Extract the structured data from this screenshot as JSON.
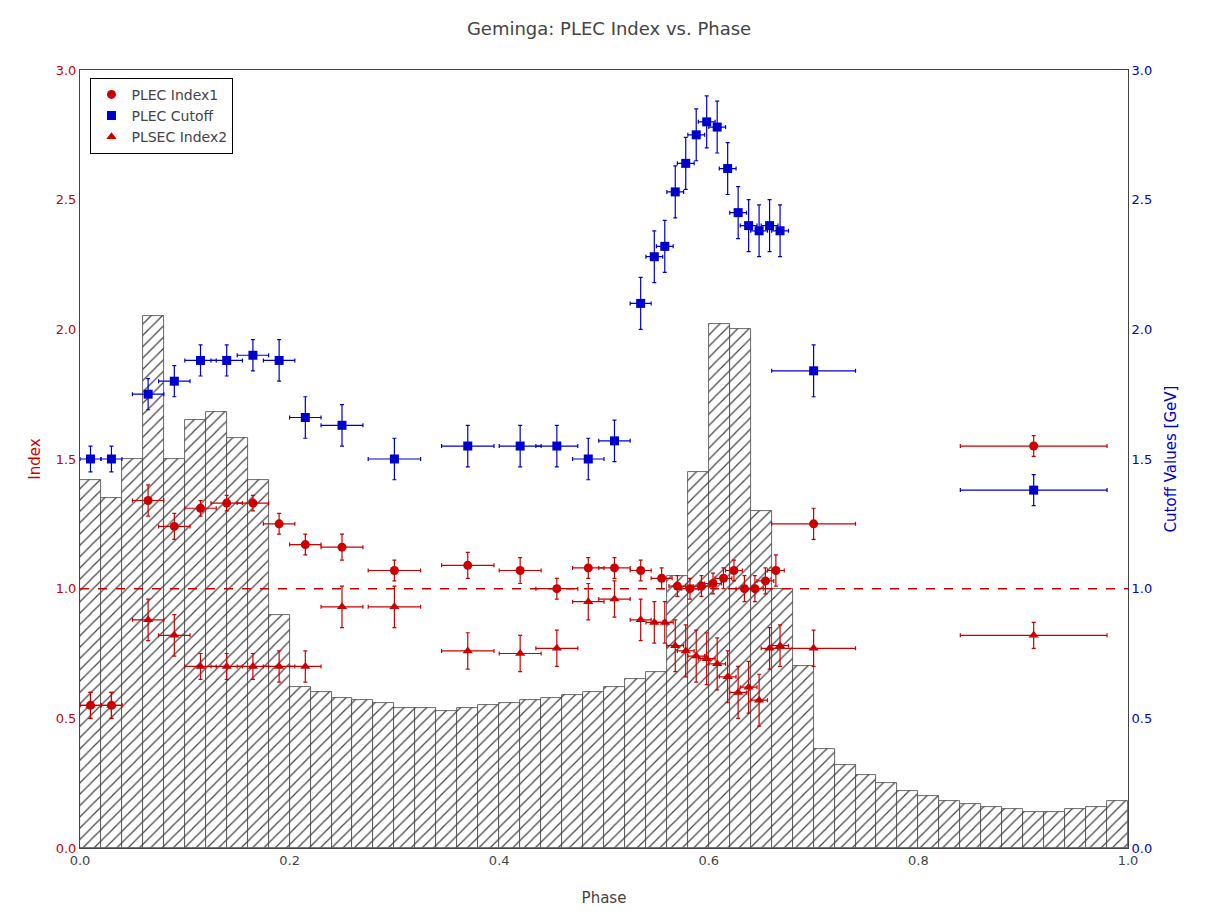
{
  "chart_data": {
    "type": "scatter",
    "title": "Geminga: PLEC Index vs. Phase",
    "xlabel": "Phase",
    "ylabel": "Index",
    "y2label": "Cutoff Values [GeV]",
    "xlim": [
      0.0,
      1.0
    ],
    "xticks": [
      {
        "value": 0.0,
        "label": "0.0"
      },
      0.2,
      0.4,
      0.6,
      0.8,
      {
        "value": 1.0,
        "label": "1.0"
      }
    ],
    "ylim": [
      0.0,
      3.0
    ],
    "yticks": [
      {
        "value": 0.0,
        "label": "0.0"
      },
      0.5,
      {
        "value": 1.0,
        "label": "1.0"
      },
      1.5,
      {
        "value": 2.0,
        "label": "2.0"
      },
      2.5,
      {
        "value": 3.0,
        "label": "3.0"
      }
    ],
    "y2lim": [
      0.0,
      3.0
    ],
    "y2ticks": [
      {
        "value": 0.0,
        "label": "0.0"
      },
      0.5,
      {
        "value": 1.0,
        "label": "1.0"
      },
      1.5,
      {
        "value": 2.0,
        "label": "2.0"
      },
      2.5,
      {
        "value": 3.0,
        "label": "3.0"
      }
    ],
    "grid": false,
    "legend": "upper left",
    "hlines": [
      {
        "y": 1.0,
        "color": "#cc0000",
        "line_style": "dashed"
      }
    ],
    "series": [
      {
        "type": "bar",
        "color": "#444444",
        "bins": [
          0.0,
          0.02,
          0.04,
          0.06,
          0.08,
          0.1,
          0.12,
          0.14,
          0.16,
          0.18,
          0.2,
          0.22,
          0.24,
          0.26,
          0.28,
          0.3,
          0.32,
          0.34,
          0.36,
          0.38,
          0.4,
          0.42,
          0.44,
          0.46,
          0.48,
          0.5,
          0.52,
          0.54,
          0.56,
          0.58,
          0.6,
          0.62,
          0.64,
          0.66,
          0.68,
          0.7,
          0.72,
          0.74,
          0.76,
          0.78,
          0.8,
          0.82,
          0.84,
          0.86,
          0.88,
          0.9,
          0.92,
          0.94,
          0.96,
          0.98,
          1.0
        ],
        "values": [
          1.42,
          1.35,
          1.5,
          2.05,
          1.5,
          1.65,
          1.68,
          1.58,
          1.42,
          0.9,
          0.62,
          0.6,
          0.58,
          0.57,
          0.56,
          0.54,
          0.54,
          0.53,
          0.54,
          0.55,
          0.56,
          0.57,
          0.58,
          0.59,
          0.6,
          0.62,
          0.65,
          0.68,
          1.05,
          1.45,
          2.02,
          2.0,
          1.3,
          1.0,
          0.7,
          0.38,
          0.32,
          0.28,
          0.25,
          0.22,
          0.2,
          0.18,
          0.17,
          0.16,
          0.15,
          0.14,
          0.14,
          0.15,
          0.16,
          0.18
        ]
      },
      {
        "name": "PLEC Index1",
        "type": "scatter",
        "marker": "circle",
        "color": "#cc0000",
        "axis": "y",
        "x": [
          0.01,
          0.03,
          0.065,
          0.09,
          0.115,
          0.14,
          0.165,
          0.19,
          0.215,
          0.25,
          0.3,
          0.37,
          0.42,
          0.455,
          0.485,
          0.51,
          0.535,
          0.555,
          0.57,
          0.582,
          0.593,
          0.604,
          0.614,
          0.624,
          0.634,
          0.644,
          0.654,
          0.664,
          0.7,
          0.91
        ],
        "values": [
          0.55,
          0.55,
          1.34,
          1.24,
          1.31,
          1.33,
          1.33,
          1.25,
          1.17,
          1.16,
          1.07,
          1.09,
          1.07,
          1.0,
          1.08,
          1.08,
          1.07,
          1.04,
          1.01,
          1.0,
          1.01,
          1.02,
          1.04,
          1.07,
          1.0,
          1.0,
          1.03,
          1.07,
          1.25,
          1.55
        ],
        "xerr": [
          0.01,
          0.01,
          0.015,
          0.015,
          0.015,
          0.015,
          0.015,
          0.015,
          0.015,
          0.02,
          0.025,
          0.025,
          0.02,
          0.02,
          0.015,
          0.015,
          0.01,
          0.01,
          0.008,
          0.008,
          0.008,
          0.008,
          0.008,
          0.008,
          0.008,
          0.008,
          0.008,
          0.008,
          0.04,
          0.07
        ],
        "yerr": [
          0.05,
          0.05,
          0.06,
          0.05,
          0.03,
          0.03,
          0.03,
          0.04,
          0.04,
          0.05,
          0.04,
          0.05,
          0.05,
          0.04,
          0.04,
          0.04,
          0.04,
          0.04,
          0.04,
          0.04,
          0.04,
          0.04,
          0.04,
          0.04,
          0.05,
          0.05,
          0.05,
          0.06,
          0.06,
          0.04
        ]
      },
      {
        "name": "PLEC Cutoff",
        "type": "scatter",
        "marker": "square",
        "color": "#0000cc",
        "axis": "y2",
        "x": [
          0.01,
          0.03,
          0.065,
          0.09,
          0.115,
          0.14,
          0.165,
          0.19,
          0.215,
          0.25,
          0.3,
          0.37,
          0.42,
          0.455,
          0.485,
          0.51,
          0.535,
          0.548,
          0.558,
          0.568,
          0.578,
          0.588,
          0.598,
          0.608,
          0.618,
          0.628,
          0.638,
          0.648,
          0.658,
          0.668,
          0.7,
          0.91
        ],
        "values": [
          1.5,
          1.5,
          1.75,
          1.8,
          1.88,
          1.88,
          1.9,
          1.88,
          1.66,
          1.63,
          1.5,
          1.55,
          1.55,
          1.55,
          1.5,
          1.57,
          2.1,
          2.28,
          2.32,
          2.53,
          2.64,
          2.75,
          2.8,
          2.78,
          2.62,
          2.45,
          2.4,
          2.38,
          2.4,
          2.38,
          1.84,
          1.38
        ],
        "xerr": [
          0.01,
          0.01,
          0.015,
          0.015,
          0.015,
          0.015,
          0.015,
          0.015,
          0.015,
          0.02,
          0.025,
          0.025,
          0.02,
          0.02,
          0.015,
          0.015,
          0.01,
          0.008,
          0.008,
          0.008,
          0.008,
          0.008,
          0.008,
          0.008,
          0.008,
          0.008,
          0.008,
          0.008,
          0.008,
          0.008,
          0.04,
          0.07
        ],
        "yerr": [
          0.05,
          0.05,
          0.06,
          0.06,
          0.06,
          0.06,
          0.06,
          0.08,
          0.08,
          0.08,
          0.08,
          0.08,
          0.08,
          0.08,
          0.08,
          0.08,
          0.1,
          0.1,
          0.1,
          0.1,
          0.1,
          0.1,
          0.1,
          0.1,
          0.1,
          0.1,
          0.1,
          0.1,
          0.1,
          0.1,
          0.1,
          0.06
        ]
      },
      {
        "name": "PLSEC Index2",
        "type": "scatter",
        "marker": "triangle",
        "color": "#cc0000",
        "axis": "y",
        "x": [
          0.01,
          0.03,
          0.065,
          0.09,
          0.115,
          0.14,
          0.165,
          0.19,
          0.215,
          0.25,
          0.3,
          0.37,
          0.42,
          0.455,
          0.485,
          0.51,
          0.535,
          0.548,
          0.558,
          0.568,
          0.578,
          0.588,
          0.598,
          0.608,
          0.618,
          0.628,
          0.638,
          0.648,
          0.658,
          0.668,
          0.7,
          0.91
        ],
        "values": [
          0.55,
          0.55,
          0.88,
          0.82,
          0.7,
          0.7,
          0.7,
          0.7,
          0.7,
          0.93,
          0.93,
          0.76,
          0.75,
          0.77,
          0.95,
          0.96,
          0.88,
          0.87,
          0.87,
          0.78,
          0.76,
          0.74,
          0.73,
          0.71,
          0.66,
          0.6,
          0.62,
          0.57,
          0.77,
          0.78,
          0.77,
          0.82
        ],
        "xerr": [
          0.01,
          0.01,
          0.015,
          0.015,
          0.015,
          0.015,
          0.015,
          0.015,
          0.015,
          0.02,
          0.025,
          0.025,
          0.02,
          0.02,
          0.015,
          0.015,
          0.01,
          0.008,
          0.008,
          0.008,
          0.008,
          0.008,
          0.008,
          0.008,
          0.008,
          0.008,
          0.008,
          0.008,
          0.008,
          0.008,
          0.04,
          0.07
        ],
        "yerr": [
          0.05,
          0.05,
          0.08,
          0.08,
          0.05,
          0.05,
          0.05,
          0.06,
          0.06,
          0.08,
          0.08,
          0.07,
          0.07,
          0.07,
          0.07,
          0.07,
          0.08,
          0.08,
          0.08,
          0.1,
          0.1,
          0.1,
          0.1,
          0.1,
          0.1,
          0.1,
          0.1,
          0.1,
          0.08,
          0.08,
          0.07,
          0.05
        ]
      }
    ]
  }
}
